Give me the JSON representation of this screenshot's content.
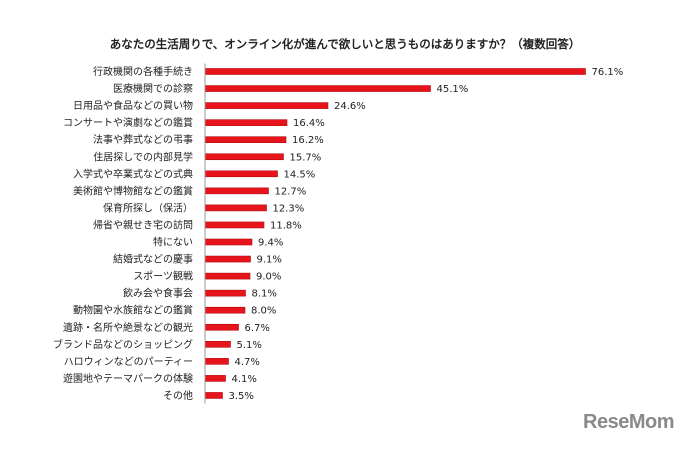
{
  "chart_data": {
    "type": "bar",
    "orientation": "horizontal",
    "title": "あなたの生活周りで、オンライン化が進んで欲しいと思うものはありますか？（複数回答）",
    "categories": [
      "行政機関の各種手続き",
      "医療機関での診察",
      "日用品や食品などの買い物",
      "コンサートや演劇などの鑑賞",
      "法事や葬式などの弔事",
      "住居探しでの内部見学",
      "入学式や卒業式などの式典",
      "美術館や博物館などの鑑賞",
      "保育所探し（保活）",
      "帰省や親せき宅の訪問",
      "特にない",
      "結婚式などの慶事",
      "スポーツ観戦",
      "飲み会や食事会",
      "動物園や水族館などの鑑賞",
      "遺跡・名所や絶景などの観光",
      "ブランド品などのショッピング",
      "ハロウィンなどのパーティー",
      "遊園地やテーマパークの体験",
      "その他"
    ],
    "values": [
      76.1,
      45.1,
      24.6,
      16.4,
      16.2,
      15.7,
      14.5,
      12.7,
      12.3,
      11.8,
      9.4,
      9.1,
      9.0,
      8.1,
      8.0,
      6.7,
      5.1,
      4.7,
      4.1,
      3.5
    ],
    "value_labels": [
      "76.1%",
      "45.1%",
      "24.6%",
      "16.4%",
      "16.2%",
      "15.7%",
      "14.5%",
      "12.7%",
      "12.3%",
      "11.8%",
      "9.4%",
      "9.1%",
      "9.0%",
      "8.1%",
      "8.0%",
      "6.7%",
      "5.1%",
      "4.7%",
      "4.1%",
      "3.5%"
    ],
    "xlim": [
      0,
      80
    ],
    "grid": false,
    "bar_color": "#e8141b",
    "bar_edge_color": "#b00a10"
  },
  "logo": "ReseMom"
}
